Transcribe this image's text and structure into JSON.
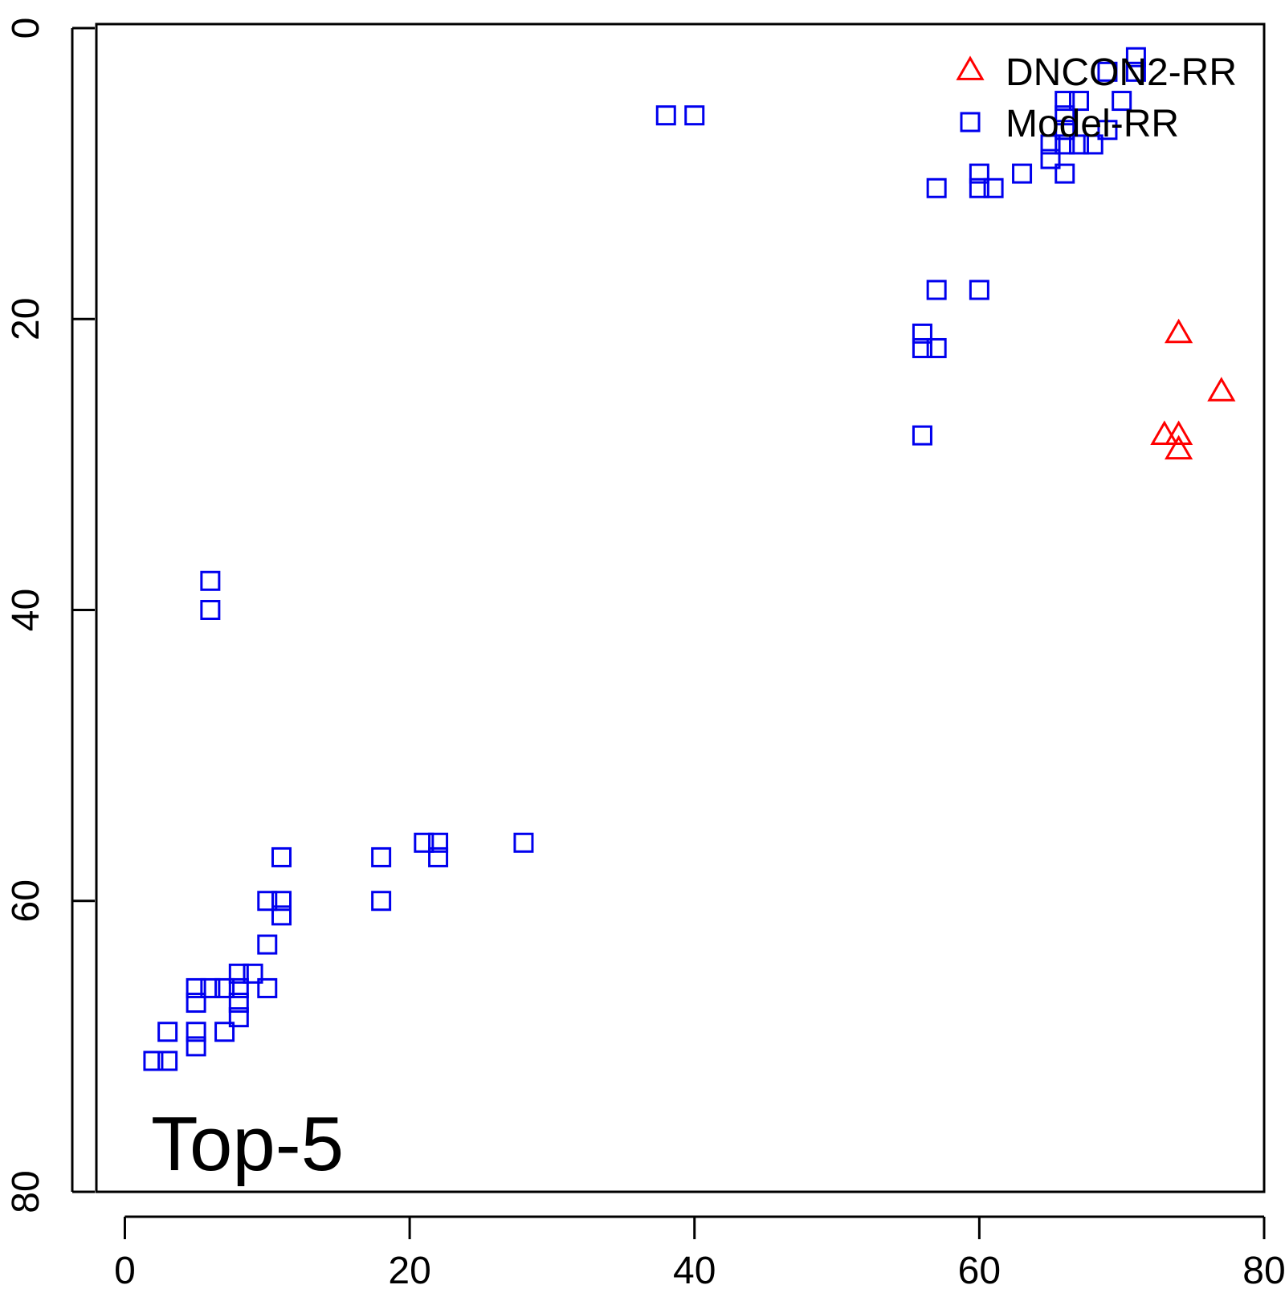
{
  "chart_data": {
    "type": "scatter",
    "title": "",
    "xlabel": "",
    "ylabel": "",
    "annotation": "Top-5",
    "xlim": [
      -2,
      80
    ],
    "ylim": [
      0,
      80
    ],
    "y_reversed": true,
    "x_ticks": [
      0,
      20,
      40,
      60,
      80
    ],
    "y_ticks": [
      0,
      20,
      40,
      60,
      80
    ],
    "legend": {
      "placement": "top-right"
    },
    "series": [
      {
        "name": "DNCON2-RR",
        "marker": "triangle",
        "color": "#ff0000",
        "points": [
          [
            74,
            21
          ],
          [
            77,
            25
          ],
          [
            73,
            28
          ],
          [
            74,
            28
          ],
          [
            74,
            29
          ]
        ]
      },
      {
        "name": "Model-RR",
        "marker": "square",
        "color": "#0000ee",
        "points": [
          [
            71,
            2
          ],
          [
            69,
            3
          ],
          [
            71,
            3
          ],
          [
            66,
            5
          ],
          [
            67,
            5
          ],
          [
            70,
            5
          ],
          [
            66,
            6
          ],
          [
            38,
            6
          ],
          [
            40,
            6
          ],
          [
            66,
            7
          ],
          [
            69,
            7
          ],
          [
            65,
            8
          ],
          [
            66,
            8
          ],
          [
            67,
            8
          ],
          [
            68,
            8
          ],
          [
            65,
            9
          ],
          [
            60,
            10
          ],
          [
            63,
            10
          ],
          [
            66,
            10
          ],
          [
            57,
            11
          ],
          [
            60,
            11
          ],
          [
            61,
            11
          ],
          [
            57,
            18
          ],
          [
            60,
            18
          ],
          [
            56,
            21
          ],
          [
            56,
            22
          ],
          [
            57,
            22
          ],
          [
            56,
            28
          ],
          [
            6,
            38
          ],
          [
            6,
            40
          ],
          [
            21,
            56
          ],
          [
            22,
            56
          ],
          [
            28,
            56
          ],
          [
            11,
            57
          ],
          [
            18,
            57
          ],
          [
            22,
            57
          ],
          [
            10,
            60
          ],
          [
            11,
            60
          ],
          [
            18,
            60
          ],
          [
            11,
            61
          ],
          [
            10,
            63
          ],
          [
            8,
            65
          ],
          [
            9,
            65
          ],
          [
            5,
            66
          ],
          [
            6,
            66
          ],
          [
            7,
            66
          ],
          [
            8,
            66
          ],
          [
            10,
            66
          ],
          [
            5,
            67
          ],
          [
            8,
            67
          ],
          [
            8,
            68
          ],
          [
            3,
            69
          ],
          [
            5,
            69
          ],
          [
            7,
            69
          ],
          [
            5,
            70
          ],
          [
            2,
            71
          ],
          [
            3,
            71
          ]
        ]
      }
    ]
  }
}
